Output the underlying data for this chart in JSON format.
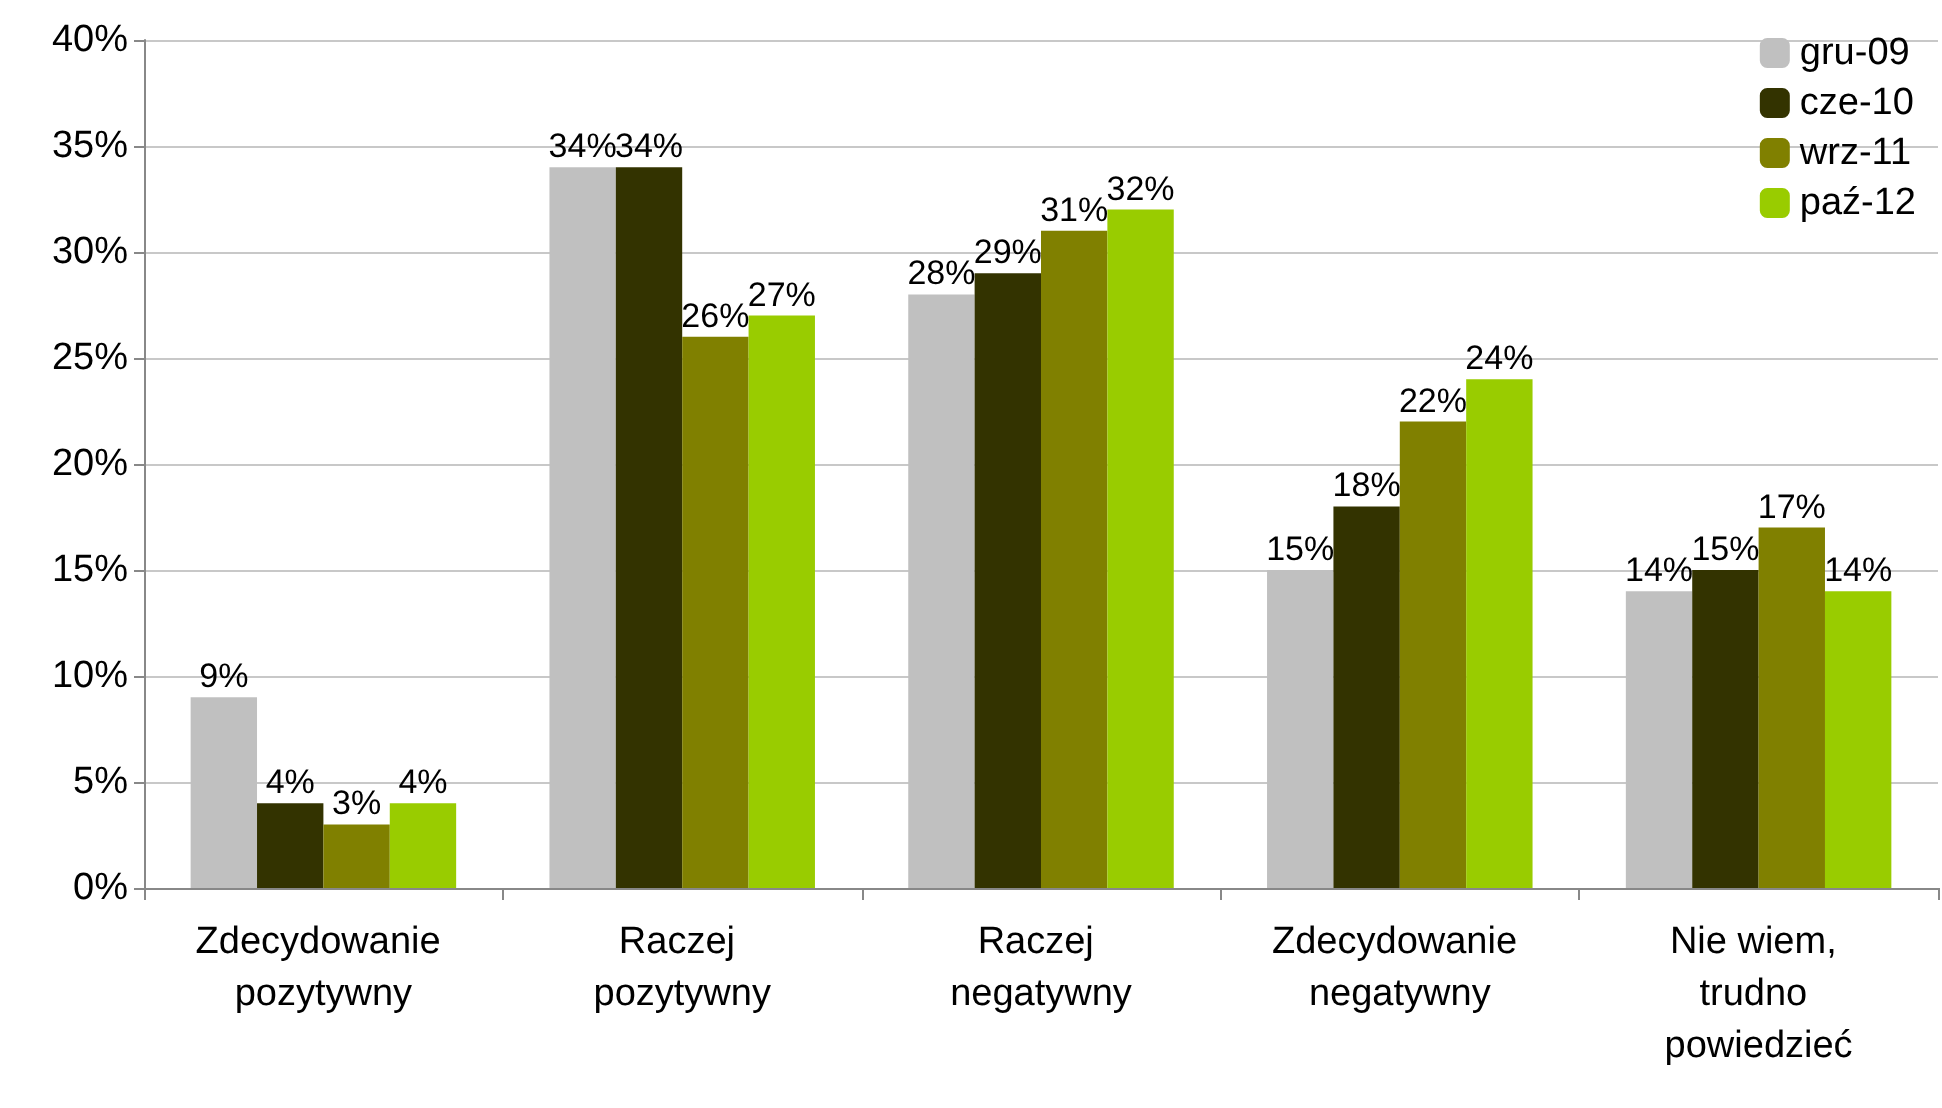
{
  "chart_data": {
    "type": "bar",
    "categories": [
      "Zdecydowanie pozytywny",
      "Raczej pozytywny",
      "Raczej negatywny",
      "Zdecydowanie negatywny",
      "Nie wiem, trudno powiedzieć"
    ],
    "series": [
      {
        "name": "gru-09",
        "color": "#c0c0c0",
        "values": [
          9,
          34,
          28,
          15,
          14
        ],
        "value_labels": [
          "9%",
          "34%",
          "28%",
          "15%",
          "14%"
        ]
      },
      {
        "name": "cze-10",
        "color": "#333300",
        "values": [
          4,
          34,
          29,
          18,
          15
        ],
        "value_labels": [
          "4%",
          "34%",
          "29%",
          "18%",
          "15%"
        ]
      },
      {
        "name": "wrz-11",
        "color": "#808000",
        "values": [
          3,
          26,
          31,
          22,
          17
        ],
        "value_labels": [
          "3%",
          "26%",
          "31%",
          "22%",
          "17%"
        ]
      },
      {
        "name": "paź-12",
        "color": "#99cc00",
        "values": [
          4,
          27,
          32,
          24,
          14
        ],
        "value_labels": [
          "4%",
          "27%",
          "32%",
          "24%",
          "14%"
        ]
      }
    ],
    "ylim": [
      0,
      40
    ],
    "yticks": [
      {
        "value": 0,
        "label": "0%"
      },
      {
        "value": 5,
        "label": "5%"
      },
      {
        "value": 10,
        "label": "10%"
      },
      {
        "value": 15,
        "label": "15%"
      },
      {
        "value": 20,
        "label": "20%"
      },
      {
        "value": 25,
        "label": "25%"
      },
      {
        "value": 30,
        "label": "30%"
      },
      {
        "value": 35,
        "label": "35%"
      },
      {
        "value": 40,
        "label": "40%"
      }
    ],
    "grid": "y",
    "legend": "top right"
  }
}
